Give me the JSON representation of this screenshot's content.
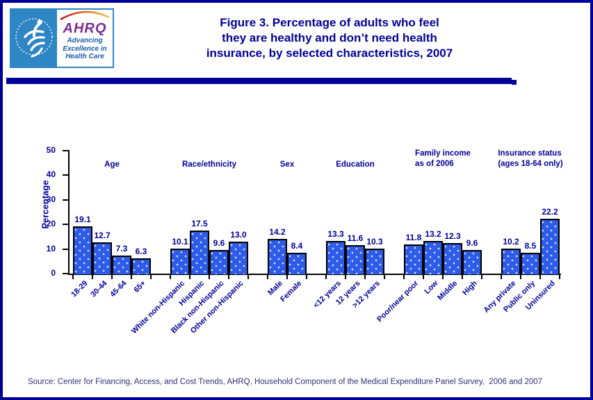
{
  "colors": {
    "accent_navy": "#000099",
    "bar_fill": "#2E5CE8",
    "bar_border": "#000000",
    "hhs_blue": "#2E86C5",
    "ahrq_purple": "#7B2E91",
    "ahrq_tagline_blue": "#1A5DAD",
    "source_text": "#2F2F78"
  },
  "header": {
    "logo": {
      "ahrq_text": "AHRQ",
      "tagline_lines": [
        "Advancing",
        "Excellence in",
        "Health Care"
      ]
    }
  },
  "chart_data": {
    "type": "bar",
    "title": "Figure 3. Percentage of adults who feel they are healthy and don’t need health insurance, by selected characteristics, 2007",
    "title_lines": [
      "Figure 3. Percentage of adults who feel",
      "they are healthy and don’t need health",
      "insurance, by selected characteristics, 2007"
    ],
    "ylabel": "Percentage",
    "xlabel": "",
    "ylim": [
      0,
      50
    ],
    "yticks": [
      0,
      10,
      20,
      30,
      40,
      50
    ],
    "grid": false,
    "legend_position": "none",
    "groups": [
      {
        "label_lines": [
          "Age"
        ],
        "categories": [
          "18-29",
          "30-44",
          "45-64",
          "65+"
        ],
        "values": [
          19.1,
          12.7,
          7.3,
          6.3
        ]
      },
      {
        "label_lines": [
          "Race/ethnicity"
        ],
        "categories": [
          "White non-Hispanic",
          "Hispanic",
          "Black non-Hispanic",
          "Other non-Hispanic"
        ],
        "values": [
          10.1,
          17.5,
          9.6,
          13.0
        ]
      },
      {
        "label_lines": [
          "Sex"
        ],
        "categories": [
          "Male",
          "Female"
        ],
        "values": [
          14.2,
          8.4
        ]
      },
      {
        "label_lines": [
          "Education"
        ],
        "categories": [
          "<12 years",
          "12 years",
          ">12 years"
        ],
        "values": [
          13.3,
          11.6,
          10.3
        ]
      },
      {
        "label_lines": [
          "Family income",
          "as of 2006"
        ],
        "categories": [
          "Poor/near poor",
          "Low",
          "Middle",
          "High"
        ],
        "values": [
          11.8,
          13.2,
          12.3,
          9.6
        ]
      },
      {
        "label_lines": [
          "Insurance status",
          "(ages 18-64 only)"
        ],
        "categories": [
          "Any private",
          "Public only",
          "Uninsured"
        ],
        "values": [
          10.2,
          8.5,
          22.2
        ]
      }
    ]
  },
  "footer": {
    "source": "Source: Center for Financing, Access, and Cost Trends, AHRQ, Household Component of the Medical Expenditure Panel Survey,  2006 and 2007"
  }
}
